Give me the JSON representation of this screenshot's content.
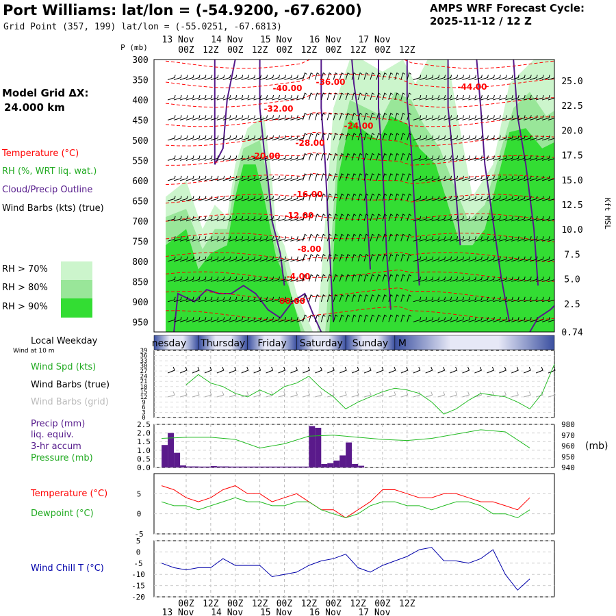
{
  "header": {
    "title": "Port Williams:  lat/lon = (-54.9200, -67.6200)",
    "subtitle": "Grid Point (357, 199) lat/lon = (-55.0251, -67.6813)",
    "cycle_label": "AMPS WRF Forecast Cycle:",
    "cycle_time": "2025-11-12 / 12  Z",
    "grid_spacing_label": "Model Grid ΔX:",
    "grid_spacing_value": "24.000 km"
  },
  "legend": {
    "temperature": "Temperature (°C)",
    "rh": "RH (%, WRT liq. wat.)",
    "cloud": "Cloud/Precip Outline",
    "wind_barbs": "Wind Barbs (kts) (true)",
    "rh70": "RH > 70%",
    "rh80": "RH > 80%",
    "rh90": "RH > 90%",
    "local_weekday": "Local Weekday",
    "wind_at_10m": "Wind at 10 m",
    "wind_spd": "Wind Spd (kts)",
    "wind_barbs_true": "Wind Barbs (true)",
    "wind_barbs_grid": "Wind Barbs (grid)",
    "precip_1": "Precip (mm)",
    "precip_2": "liq. equiv.",
    "precip_3": "3-hr accum",
    "pressure": "Pressure (mb)",
    "pressure_unit": "(mb)",
    "temp2": "Temperature (°C)",
    "dewpoint": "Dewpoint (°C)",
    "windchill": "Wind Chill T (°C)",
    "p_axis": "P (mb)",
    "kft_axis": "Kft MSL",
    "kft_bottom": "0.74"
  },
  "colors": {
    "temperature": "#ff0000",
    "rh_green": "#22aa22",
    "cloud": "#551a8b",
    "wind": "#000000",
    "grid_wind": "#aaaaaa",
    "rh70": "#ccf5cc",
    "rh80": "#99e699",
    "rh90": "#33dd33",
    "precip": "#5a1a8b",
    "pressure": "#22bb22",
    "dewpoint": "#22bb22",
    "windchill": "#0000aa"
  },
  "chart_data": [
    {
      "id": "cross_section",
      "type": "heatmap",
      "title": "Time-height cross section",
      "x_ticks": [
        "00Z",
        "12Z",
        "00Z",
        "12Z",
        "00Z",
        "12Z",
        "00Z",
        "12Z",
        "00Z",
        "12Z"
      ],
      "dates": [
        "13 Nov",
        "14 Nov",
        "15 Nov",
        "16 Nov",
        "17 Nov"
      ],
      "pressure_levels": [
        "300",
        "350",
        "400",
        "450",
        "500",
        "550",
        "600",
        "650",
        "700",
        "750",
        "800",
        "850",
        "900",
        "950"
      ],
      "kft_ticks": [
        "25.0",
        "22.5",
        "20.0",
        "17.5",
        "15.0",
        "12.5",
        "10.0",
        "7.5",
        "5.0",
        "2.5"
      ],
      "temperature_labels": [
        "-40.00",
        "-36.00",
        "-44.00",
        "-32.00",
        "-24.00",
        "-28.00",
        "-20.00",
        "-16.00",
        "-12.00",
        "-8.00",
        "-4.00",
        "00.00"
      ]
    },
    {
      "id": "weekday_band",
      "type": "table",
      "days": [
        "nesday",
        "Thursday",
        "Friday",
        "Saturday",
        "Sunday",
        "M"
      ]
    },
    {
      "id": "wind_speed",
      "type": "line",
      "ylim": [
        0,
        39
      ],
      "yticks": [
        "39",
        "36",
        "33",
        "30",
        "27",
        "24",
        "21",
        "18",
        "15",
        "12",
        "9",
        "6",
        "3",
        "0"
      ],
      "hours": [
        0,
        6,
        12,
        18,
        24,
        30,
        36,
        42,
        48,
        54,
        60,
        66,
        72,
        78,
        84,
        90,
        96,
        102,
        108,
        114,
        120,
        126,
        132,
        138,
        144,
        150,
        156,
        162,
        168,
        174,
        180
      ],
      "series": [
        {
          "name": "Wind Spd (kts)",
          "values": [
            19,
            25,
            20,
            18,
            14,
            12,
            16,
            13,
            18,
            20,
            24,
            17,
            12,
            5,
            9,
            12,
            15,
            17,
            16,
            14,
            9,
            2,
            5,
            10,
            14,
            13,
            12,
            9,
            5,
            14,
            31
          ]
        }
      ]
    },
    {
      "id": "precip_pressure",
      "type": "bar",
      "precip_ylim": [
        0,
        2.5
      ],
      "precip_yticks": [
        "2.5",
        "2.0",
        "1.5",
        "1.0",
        "0.5",
        "0.0"
      ],
      "pressure_ylim": [
        940,
        980
      ],
      "pressure_yticks": [
        "980",
        "970",
        "960",
        "950",
        "940"
      ],
      "bar_hours": [
        1.5,
        4.5,
        7.5,
        10.5,
        13.5,
        16.5,
        19.5,
        22.5,
        25.5,
        28.5,
        31.5,
        34.5,
        37.5,
        40.5,
        43.5,
        46.5,
        49.5,
        52.5,
        55.5,
        58.5,
        61.5,
        64.5,
        67.5,
        70.5,
        73.5,
        76.5,
        79.5,
        82.5,
        85.5,
        88.5,
        91.5,
        94.5,
        97.5,
        100.5,
        103.5,
        106.5,
        109.5,
        112.5,
        115.5,
        118.5,
        121.5,
        124.5,
        127.5,
        130.5,
        133.5,
        136.5,
        139.5,
        142.5,
        145.5,
        148.5,
        151.5,
        154.5,
        157.5,
        160.5,
        163.5,
        166.5,
        169.5,
        172.5,
        175.5,
        178.5
      ],
      "series": [
        {
          "name": "Precip (mm)",
          "values": [
            1.3,
            2.0,
            0.85,
            0.12,
            0.06,
            0.06,
            0.05,
            0.05,
            0.08,
            0.06,
            0.06,
            0.05,
            0.05,
            0.05,
            0.05,
            0.05,
            0.05,
            0.05,
            0.05,
            0.05,
            0.05,
            0.05,
            0.05,
            0.05,
            2.4,
            2.3,
            0.2,
            0.25,
            0.4,
            0.7,
            1.45,
            0.2,
            0.1,
            0.0,
            0.0,
            0.0,
            0.0,
            0.0,
            0.0,
            0.0,
            0.0,
            0.0,
            0.0,
            0.0,
            0.0,
            0.0,
            0.0,
            0.0,
            0.0,
            0.0,
            0.0,
            0.0,
            0.0,
            0.0,
            0.0,
            0.0,
            0.0,
            0.0,
            0.0,
            0.0
          ]
        },
        {
          "name": "Pressure (mb)",
          "hours": [
            0,
            12,
            24,
            36,
            48,
            60,
            72,
            84,
            96,
            108,
            120,
            132,
            144,
            156,
            168,
            180
          ],
          "values": [
            967,
            968,
            968,
            966,
            958,
            962,
            969,
            970,
            968,
            966,
            965,
            967,
            971,
            975,
            973,
            958
          ]
        }
      ]
    },
    {
      "id": "temp_dewpoint",
      "type": "line",
      "ylim": [
        -5,
        10
      ],
      "yticks": [
        "5",
        "0",
        "-5"
      ],
      "hours": [
        0,
        6,
        12,
        18,
        24,
        30,
        36,
        42,
        48,
        54,
        60,
        66,
        72,
        78,
        84,
        90,
        96,
        102,
        108,
        114,
        120,
        126,
        132,
        138,
        144,
        150,
        156,
        162,
        168,
        174,
        180
      ],
      "series": [
        {
          "name": "Temperature (°C)",
          "values": [
            7,
            6,
            4,
            3,
            4,
            6,
            7,
            5,
            5,
            3,
            4,
            5,
            3,
            1,
            1,
            -1,
            1,
            3,
            6,
            6,
            5,
            4,
            4,
            5,
            5,
            4,
            3,
            3,
            2,
            1,
            4
          ]
        },
        {
          "name": "Dewpoint (°C)",
          "values": [
            3,
            2,
            2,
            1,
            2,
            3,
            4,
            3,
            3,
            2,
            2,
            3,
            3,
            1,
            0,
            -1,
            0,
            2,
            3,
            3,
            2,
            2,
            1,
            2,
            3,
            3,
            2,
            0,
            0,
            -1,
            1
          ]
        }
      ]
    },
    {
      "id": "wind_chill",
      "type": "line",
      "ylim": [
        -20,
        5
      ],
      "yticks": [
        "5",
        "0",
        "-5",
        "-10",
        "-15",
        "-20"
      ],
      "hours": [
        0,
        6,
        12,
        18,
        24,
        30,
        36,
        42,
        48,
        54,
        60,
        66,
        72,
        78,
        84,
        90,
        96,
        102,
        108,
        114,
        120,
        126,
        132,
        138,
        144,
        150,
        156,
        162,
        168,
        174,
        180
      ],
      "series": [
        {
          "name": "Wind Chill T (°C)",
          "values": [
            -5,
            -7,
            -8,
            -7,
            -7,
            -3,
            -6,
            -6,
            -6,
            -11,
            -10,
            -9,
            -6,
            -4,
            -3,
            -1,
            -7,
            -9,
            -6,
            -4,
            -2,
            1,
            2,
            -4,
            -4,
            -5,
            -3,
            1,
            -10,
            -17,
            -12
          ]
        }
      ]
    }
  ]
}
